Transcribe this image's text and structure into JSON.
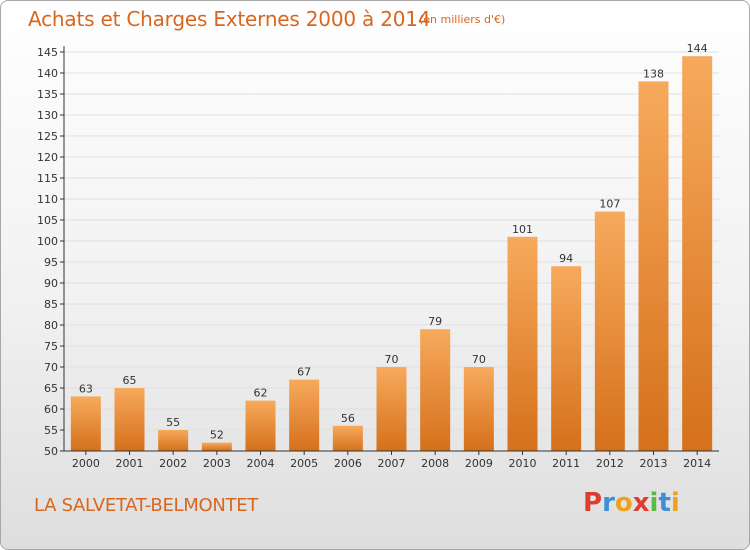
{
  "header": {
    "title": "Achats et Charges Externes 2000 à 2014",
    "unit": "(en milliers d'€)"
  },
  "footer": {
    "commune": "LA SALVETAT-BELMONTET",
    "brand_letters": [
      "P",
      "r",
      "o",
      "x",
      "i",
      "t",
      "i"
    ],
    "brand_colors": [
      "#e03b2f",
      "#3d8fd6",
      "#f0a020",
      "#e03b2f",
      "#58b947",
      "#3d8fd6",
      "#f0a020"
    ]
  },
  "colors": {
    "accent": "#d9661f",
    "bar_top": "#f7aa5c",
    "bar_bottom": "#d5701b",
    "axis": "#333333",
    "grid": "#e0e0e0"
  },
  "chart_data": {
    "type": "bar",
    "title": "Achats et Charges Externes 2000 à 2014",
    "subtitle": "(en milliers d'€)",
    "xlabel": "",
    "ylabel": "",
    "categories": [
      "2000",
      "2001",
      "2002",
      "2003",
      "2004",
      "2005",
      "2006",
      "2007",
      "2008",
      "2009",
      "2010",
      "2011",
      "2012",
      "2013",
      "2014"
    ],
    "values": [
      63,
      65,
      55,
      52,
      62,
      67,
      56,
      70,
      79,
      70,
      101,
      94,
      107,
      138,
      144
    ],
    "ylim": [
      50,
      145
    ],
    "yticks": [
      50,
      55,
      60,
      65,
      70,
      75,
      80,
      85,
      90,
      95,
      100,
      105,
      110,
      115,
      120,
      125,
      130,
      135,
      140,
      145
    ],
    "grid": true,
    "legend": "none"
  }
}
